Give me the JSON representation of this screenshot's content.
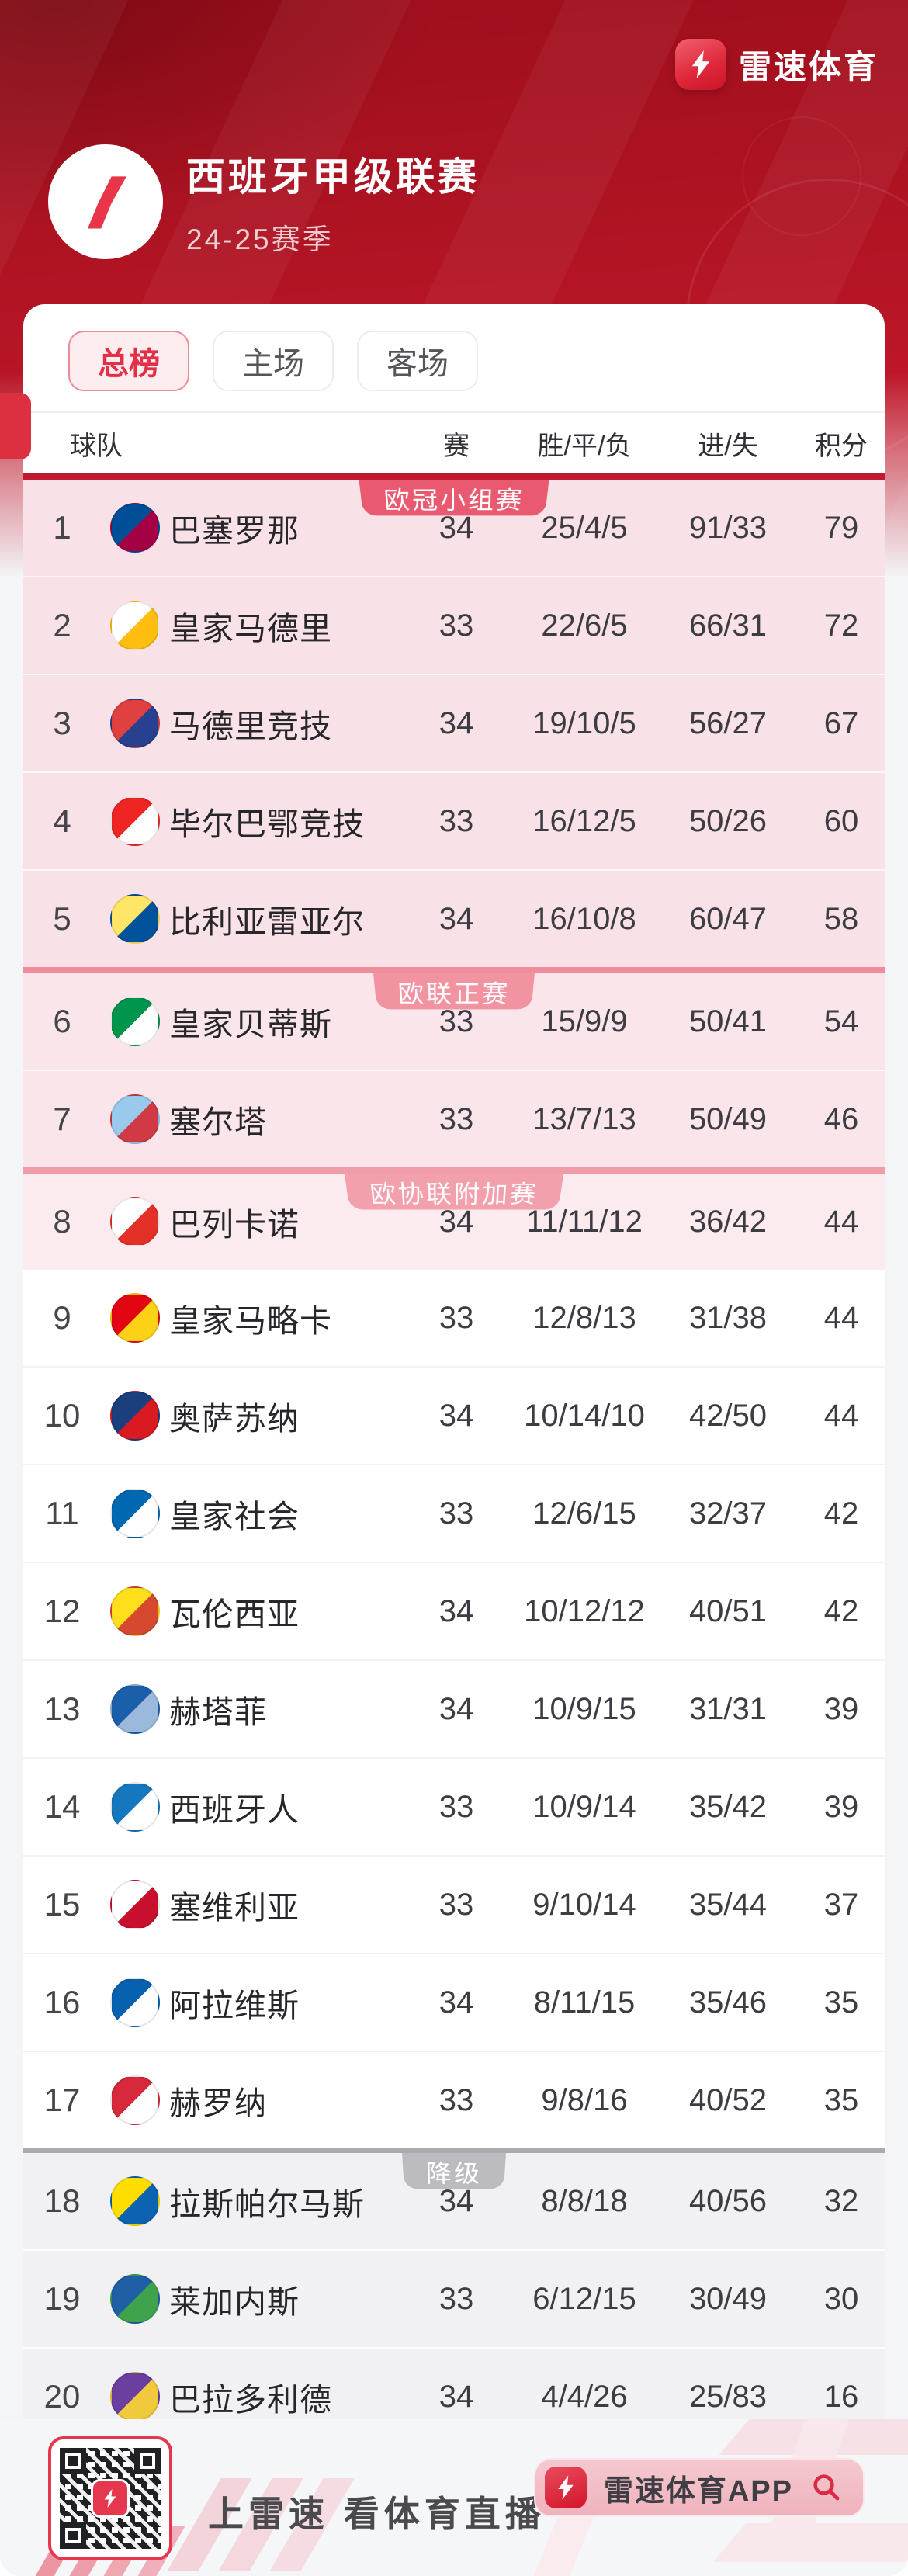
{
  "brand": {
    "name": "雷速体育",
    "app_button": "雷速体育APP",
    "slogan": "上雷速 看体育直播"
  },
  "league": {
    "title": "西班牙甲级联赛",
    "season": "24-25赛季"
  },
  "tabs": [
    {
      "label": "总榜",
      "active": true
    },
    {
      "label": "主场",
      "active": false
    },
    {
      "label": "客场",
      "active": false
    }
  ],
  "columns": {
    "team": "球队",
    "played": "赛",
    "wdl": "胜/平/负",
    "goals": "进/失",
    "points": "积分"
  },
  "zones": [
    {
      "key": "ucl",
      "badge": "欧冠小组赛",
      "bg": "#F9E2E7",
      "line": "#C01A32",
      "line_h": 8,
      "badge_bg": "#E95A70"
    },
    {
      "key": "uel",
      "badge": "欧联正赛",
      "bg": "#FAE6EA",
      "line": "#EE8E9D",
      "line_h": 8,
      "badge_bg": "#F293A1"
    },
    {
      "key": "conf",
      "badge": "欧协联附加赛",
      "bg": "#FBEBEF",
      "line": "#F09CA9",
      "line_h": 8,
      "badge_bg": "#F1A0AC"
    },
    {
      "key": "none",
      "badge": "",
      "bg": "#FFFFFF",
      "line": "",
      "line_h": 0,
      "badge_bg": ""
    },
    {
      "key": "rel",
      "badge": "降级",
      "bg": "#F1F1F4",
      "line": "#ABABAF",
      "line_h": 6,
      "badge_bg": "#BCBCC0"
    }
  ],
  "rows": [
    {
      "rank": 1,
      "team": "巴塞罗那",
      "played": "34",
      "wdl": "25/4/5",
      "goals": "91/33",
      "points": "79",
      "zone": "ucl",
      "crest": [
        "#004D98",
        "#A50044"
      ]
    },
    {
      "rank": 2,
      "team": "皇家马德里",
      "played": "33",
      "wdl": "22/6/5",
      "goals": "66/31",
      "points": "72",
      "zone": "ucl",
      "crest": [
        "#FFFFFF",
        "#FEBE10"
      ]
    },
    {
      "rank": 3,
      "team": "马德里竞技",
      "played": "34",
      "wdl": "19/10/5",
      "goals": "56/27",
      "points": "67",
      "zone": "ucl",
      "crest": [
        "#E04040",
        "#27408F"
      ]
    },
    {
      "rank": 4,
      "team": "毕尔巴鄂竞技",
      "played": "33",
      "wdl": "16/12/5",
      "goals": "50/26",
      "points": "60",
      "zone": "ucl",
      "crest": [
        "#EE2523",
        "#FFFFFF"
      ]
    },
    {
      "rank": 5,
      "team": "比利亚雷亚尔",
      "played": "34",
      "wdl": "16/10/8",
      "goals": "60/47",
      "points": "58",
      "zone": "ucl",
      "crest": [
        "#FFE667",
        "#00529B"
      ]
    },
    {
      "rank": 6,
      "team": "皇家贝蒂斯",
      "played": "33",
      "wdl": "15/9/9",
      "goals": "50/41",
      "points": "54",
      "zone": "uel",
      "crest": [
        "#00954C",
        "#FFFFFF"
      ]
    },
    {
      "rank": 7,
      "team": "塞尔塔",
      "played": "33",
      "wdl": "13/7/13",
      "goals": "50/49",
      "points": "46",
      "zone": "uel",
      "crest": [
        "#9AC9EE",
        "#D03A45"
      ]
    },
    {
      "rank": 8,
      "team": "巴列卡诺",
      "played": "34",
      "wdl": "11/11/12",
      "goals": "36/42",
      "points": "44",
      "zone": "conf",
      "crest": [
        "#FFFFFF",
        "#E53027"
      ]
    },
    {
      "rank": 9,
      "team": "皇家马略卡",
      "played": "33",
      "wdl": "12/8/13",
      "goals": "31/38",
      "points": "44",
      "zone": "none",
      "crest": [
        "#E20613",
        "#FCD116"
      ]
    },
    {
      "rank": 10,
      "team": "奥萨苏纳",
      "played": "34",
      "wdl": "10/14/10",
      "goals": "42/50",
      "points": "44",
      "zone": "none",
      "crest": [
        "#1A3E7E",
        "#D91A21"
      ]
    },
    {
      "rank": 11,
      "team": "皇家社会",
      "played": "33",
      "wdl": "12/6/15",
      "goals": "32/37",
      "points": "42",
      "zone": "none",
      "crest": [
        "#0067B1",
        "#FFFFFF"
      ]
    },
    {
      "rank": 12,
      "team": "瓦伦西亚",
      "played": "34",
      "wdl": "10/12/12",
      "goals": "40/51",
      "points": "42",
      "zone": "none",
      "crest": [
        "#FFDF1C",
        "#D6492F"
      ]
    },
    {
      "rank": 13,
      "team": "赫塔菲",
      "played": "34",
      "wdl": "10/9/15",
      "goals": "31/31",
      "points": "39",
      "zone": "none",
      "crest": [
        "#1B5FAA",
        "#9BB9DC"
      ]
    },
    {
      "rank": 14,
      "team": "西班牙人",
      "played": "33",
      "wdl": "10/9/14",
      "goals": "35/42",
      "points": "39",
      "zone": "none",
      "crest": [
        "#1577BE",
        "#FFFFFF"
      ]
    },
    {
      "rank": 15,
      "team": "塞维利亚",
      "played": "33",
      "wdl": "9/10/14",
      "goals": "35/44",
      "points": "37",
      "zone": "none",
      "crest": [
        "#FFFFFF",
        "#C8102E"
      ]
    },
    {
      "rank": 16,
      "team": "阿拉维斯",
      "played": "34",
      "wdl": "8/11/15",
      "goals": "35/46",
      "points": "35",
      "zone": "none",
      "crest": [
        "#0761AF",
        "#FFFFFF"
      ]
    },
    {
      "rank": 17,
      "team": "赫罗纳",
      "played": "33",
      "wdl": "9/8/16",
      "goals": "40/52",
      "points": "35",
      "zone": "none",
      "crest": [
        "#D7283C",
        "#FFFFFF"
      ]
    },
    {
      "rank": 18,
      "team": "拉斯帕尔马斯",
      "played": "34",
      "wdl": "8/8/18",
      "goals": "40/56",
      "points": "32",
      "zone": "rel",
      "crest": [
        "#FFDD00",
        "#0B63B2"
      ]
    },
    {
      "rank": 19,
      "team": "莱加内斯",
      "played": "33",
      "wdl": "6/12/15",
      "goals": "30/49",
      "points": "30",
      "zone": "rel",
      "crest": [
        "#1F5FA6",
        "#3FA34D"
      ]
    },
    {
      "rank": 20,
      "team": "巴拉多利德",
      "played": "34",
      "wdl": "4/4/26",
      "goals": "25/83",
      "points": "16",
      "zone": "rel",
      "crest": [
        "#6A3FA0",
        "#F0C93C"
      ]
    }
  ],
  "colors": {
    "accent_red": "#E23048",
    "hero_red": "#B01424",
    "page_bg": "#F3F5F7",
    "card_bg": "#FFFFFF"
  }
}
